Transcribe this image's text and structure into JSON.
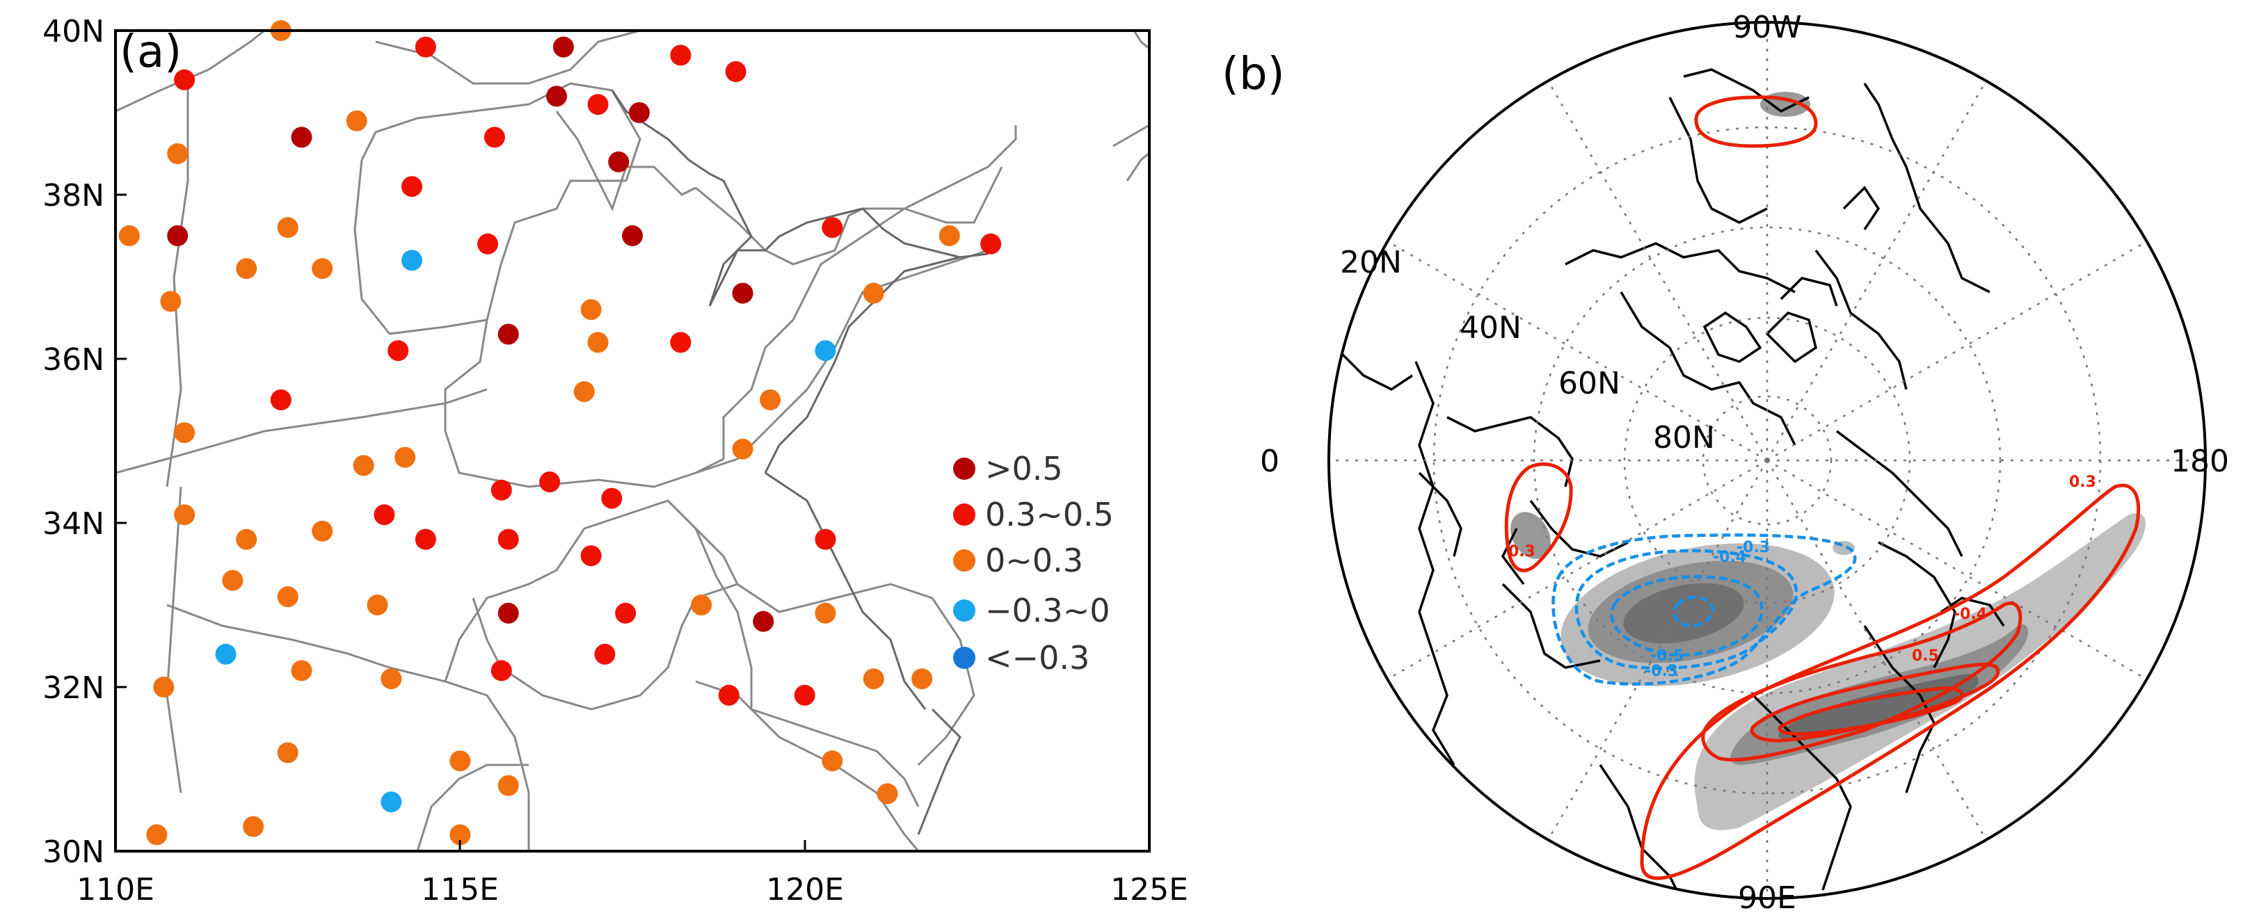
{
  "panel_a": {
    "label": "(a)",
    "x_ticks": [
      "110E",
      "115E",
      "120E",
      "125E"
    ],
    "y_ticks": [
      "30N",
      "32N",
      "34N",
      "36N",
      "38N",
      "40N"
    ],
    "legend": [
      {
        "label": ">0.5",
        "color": "#b30000"
      },
      {
        "label": "0.3~0.5",
        "color": "#ee1100"
      },
      {
        "label": "0~0.3",
        "color": "#f07010"
      },
      {
        "label": "−0.3~0",
        "color": "#1aa6ee"
      },
      {
        "label": "<−0.3",
        "color": "#1878d8"
      }
    ],
    "stations": [
      {
        "lon": 111.0,
        "lat": 39.4,
        "c": 1
      },
      {
        "lon": 112.4,
        "lat": 40.0,
        "c": 2
      },
      {
        "lon": 114.5,
        "lat": 39.8,
        "c": 1
      },
      {
        "lon": 116.5,
        "lat": 39.8,
        "c": 0
      },
      {
        "lon": 118.2,
        "lat": 39.7,
        "c": 1
      },
      {
        "lon": 119.0,
        "lat": 39.5,
        "c": 1
      },
      {
        "lon": 116.4,
        "lat": 39.2,
        "c": 0
      },
      {
        "lon": 117.0,
        "lat": 39.1,
        "c": 1
      },
      {
        "lon": 117.6,
        "lat": 39.0,
        "c": 0
      },
      {
        "lon": 112.7,
        "lat": 38.7,
        "c": 0
      },
      {
        "lon": 113.5,
        "lat": 38.9,
        "c": 2
      },
      {
        "lon": 115.5,
        "lat": 38.7,
        "c": 1
      },
      {
        "lon": 110.9,
        "lat": 38.5,
        "c": 2
      },
      {
        "lon": 117.3,
        "lat": 38.4,
        "c": 0
      },
      {
        "lon": 114.3,
        "lat": 38.1,
        "c": 1
      },
      {
        "lon": 110.2,
        "lat": 37.5,
        "c": 2
      },
      {
        "lon": 110.9,
        "lat": 37.5,
        "c": 0
      },
      {
        "lon": 112.5,
        "lat": 37.6,
        "c": 2
      },
      {
        "lon": 111.9,
        "lat": 37.1,
        "c": 2
      },
      {
        "lon": 113.0,
        "lat": 37.1,
        "c": 2
      },
      {
        "lon": 114.3,
        "lat": 37.2,
        "c": 3
      },
      {
        "lon": 115.4,
        "lat": 37.4,
        "c": 1
      },
      {
        "lon": 117.5,
        "lat": 37.5,
        "c": 0
      },
      {
        "lon": 120.4,
        "lat": 37.6,
        "c": 1
      },
      {
        "lon": 122.1,
        "lat": 37.5,
        "c": 2
      },
      {
        "lon": 122.7,
        "lat": 37.4,
        "c": 1
      },
      {
        "lon": 110.8,
        "lat": 36.7,
        "c": 2
      },
      {
        "lon": 119.1,
        "lat": 36.8,
        "c": 0
      },
      {
        "lon": 121.0,
        "lat": 36.8,
        "c": 2
      },
      {
        "lon": 116.9,
        "lat": 36.6,
        "c": 2
      },
      {
        "lon": 117.0,
        "lat": 36.2,
        "c": 2
      },
      {
        "lon": 115.7,
        "lat": 36.3,
        "c": 0
      },
      {
        "lon": 114.1,
        "lat": 36.1,
        "c": 1
      },
      {
        "lon": 118.2,
        "lat": 36.2,
        "c": 1
      },
      {
        "lon": 120.3,
        "lat": 36.1,
        "c": 3
      },
      {
        "lon": 112.4,
        "lat": 35.5,
        "c": 1
      },
      {
        "lon": 116.8,
        "lat": 35.6,
        "c": 2
      },
      {
        "lon": 119.5,
        "lat": 35.5,
        "c": 2
      },
      {
        "lon": 111.0,
        "lat": 35.1,
        "c": 2
      },
      {
        "lon": 119.1,
        "lat": 34.9,
        "c": 2
      },
      {
        "lon": 113.6,
        "lat": 34.7,
        "c": 2
      },
      {
        "lon": 114.2,
        "lat": 34.8,
        "c": 2
      },
      {
        "lon": 115.6,
        "lat": 34.4,
        "c": 1
      },
      {
        "lon": 116.3,
        "lat": 34.5,
        "c": 1
      },
      {
        "lon": 117.2,
        "lat": 34.3,
        "c": 1
      },
      {
        "lon": 111.0,
        "lat": 34.1,
        "c": 2
      },
      {
        "lon": 113.9,
        "lat": 34.1,
        "c": 1
      },
      {
        "lon": 111.9,
        "lat": 33.8,
        "c": 2
      },
      {
        "lon": 113.0,
        "lat": 33.9,
        "c": 2
      },
      {
        "lon": 114.5,
        "lat": 33.8,
        "c": 1
      },
      {
        "lon": 115.7,
        "lat": 33.8,
        "c": 1
      },
      {
        "lon": 116.9,
        "lat": 33.6,
        "c": 1
      },
      {
        "lon": 120.3,
        "lat": 33.8,
        "c": 1
      },
      {
        "lon": 111.7,
        "lat": 33.3,
        "c": 2
      },
      {
        "lon": 112.5,
        "lat": 33.1,
        "c": 2
      },
      {
        "lon": 113.8,
        "lat": 33.0,
        "c": 2
      },
      {
        "lon": 115.7,
        "lat": 32.9,
        "c": 0
      },
      {
        "lon": 117.4,
        "lat": 32.9,
        "c": 1
      },
      {
        "lon": 118.5,
        "lat": 33.0,
        "c": 2
      },
      {
        "lon": 119.4,
        "lat": 32.8,
        "c": 0
      },
      {
        "lon": 120.3,
        "lat": 32.9,
        "c": 2
      },
      {
        "lon": 111.6,
        "lat": 32.4,
        "c": 3
      },
      {
        "lon": 110.7,
        "lat": 32.0,
        "c": 2
      },
      {
        "lon": 112.7,
        "lat": 32.2,
        "c": 2
      },
      {
        "lon": 114.0,
        "lat": 32.1,
        "c": 2
      },
      {
        "lon": 115.6,
        "lat": 32.2,
        "c": 1
      },
      {
        "lon": 117.1,
        "lat": 32.4,
        "c": 1
      },
      {
        "lon": 118.9,
        "lat": 31.9,
        "c": 1
      },
      {
        "lon": 120.0,
        "lat": 31.9,
        "c": 1
      },
      {
        "lon": 121.0,
        "lat": 32.1,
        "c": 2
      },
      {
        "lon": 121.7,
        "lat": 32.1,
        "c": 2
      },
      {
        "lon": 112.5,
        "lat": 31.2,
        "c": 2
      },
      {
        "lon": 115.0,
        "lat": 31.1,
        "c": 2
      },
      {
        "lon": 120.4,
        "lat": 31.1,
        "c": 2
      },
      {
        "lon": 115.7,
        "lat": 30.8,
        "c": 2
      },
      {
        "lon": 114.0,
        "lat": 30.6,
        "c": 3
      },
      {
        "lon": 121.2,
        "lat": 30.7,
        "c": 2
      },
      {
        "lon": 112.0,
        "lat": 30.3,
        "c": 2
      },
      {
        "lon": 115.0,
        "lat": 30.2,
        "c": 2
      },
      {
        "lon": 110.6,
        "lat": 30.2,
        "c": 2
      }
    ]
  },
  "panel_b": {
    "label": "(b)",
    "lon_labels": {
      "top": "90W",
      "left": "0",
      "right": "180",
      "bottom": "90E"
    },
    "lat_labels": [
      "20N",
      "40N",
      "60N",
      "80N"
    ],
    "contour_labels": [
      {
        "text": "0.3",
        "color": "#e82000"
      },
      {
        "text": "0.3",
        "color": "#e82000"
      },
      {
        "text": "-0.4",
        "color": "#e82000"
      },
      {
        "text": "0.5",
        "color": "#e82000"
      },
      {
        "text": "-0.3",
        "color": "#1590e8"
      },
      {
        "text": "-0.4",
        "color": "#1590e8"
      },
      {
        "text": "-0.5",
        "color": "#1590e8"
      },
      {
        "text": "-0.3",
        "color": "#1590e8"
      }
    ]
  }
}
